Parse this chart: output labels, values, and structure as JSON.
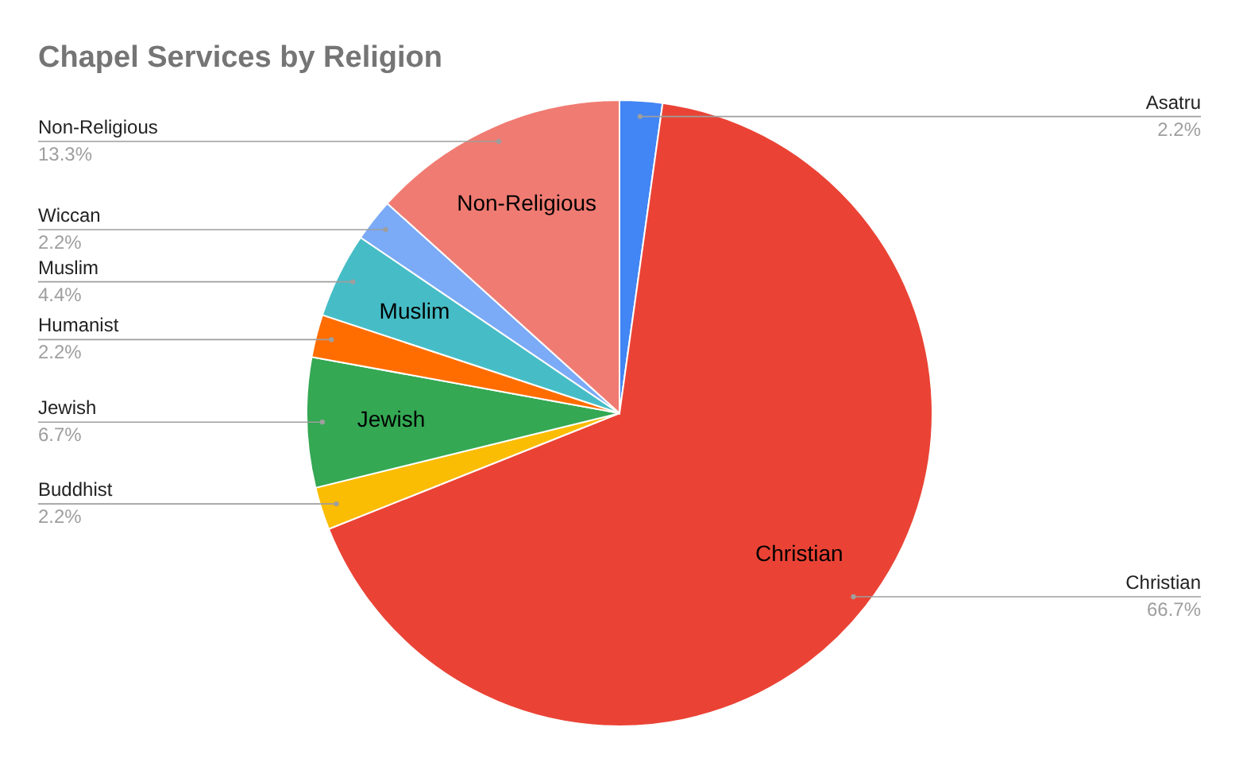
{
  "chart_data": {
    "type": "pie",
    "title": "Chapel Services by Religion",
    "categories": [
      "Asatru",
      "Christian",
      "Buddhist",
      "Jewish",
      "Humanist",
      "Muslim",
      "Wiccan",
      "Non-Religious"
    ],
    "values": [
      2.2,
      66.7,
      2.2,
      6.7,
      2.2,
      4.4,
      2.2,
      13.3
    ],
    "colors": [
      "#4285f4",
      "#ea4335",
      "#fbbc04",
      "#34a853",
      "#ff6d01",
      "#46bdc6",
      "#7baaf7",
      "#f07b72"
    ],
    "value_labels": [
      "2.2%",
      "66.7%",
      "2.2%",
      "6.7%",
      "2.2%",
      "4.4%",
      "2.2%",
      "13.3%"
    ]
  }
}
